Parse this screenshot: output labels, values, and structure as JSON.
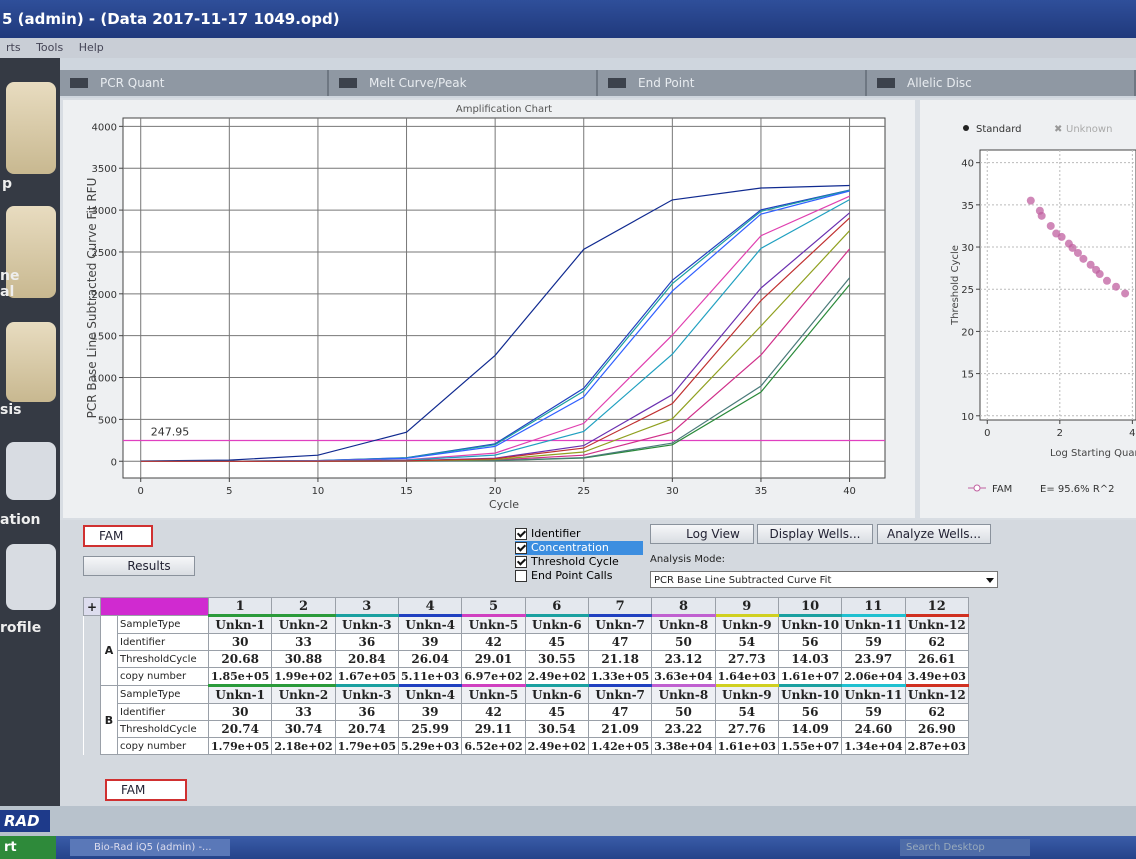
{
  "window": {
    "title": "5 (admin) - (Data 2017-11-17 1049.opd)",
    "menu": [
      "rts",
      "Tools",
      "Help"
    ]
  },
  "sidebar": [
    "p",
    "ne",
    "al",
    "sis",
    "ation",
    "rofile"
  ],
  "tabs": [
    "PCR Quant",
    "Melt Curve/Peak",
    "End Point",
    "Allelic Disc"
  ],
  "amplification_chart": {
    "type": "line",
    "title": "Amplification Chart",
    "x_label": "Cycle",
    "y_label": "PCR Base Line Subtracted Curve Fit RFU",
    "x": [
      0,
      5,
      10,
      15,
      20,
      25,
      30,
      35,
      40
    ],
    "series": [
      {
        "color": "#2040c0",
        "values": [
          0,
          1,
          8,
          42,
          209,
          871,
          2161,
          3003,
          3239
        ]
      },
      {
        "color": "#2a8a3a",
        "values": [
          0,
          0,
          1,
          4,
          7,
          39,
          197,
          827,
          2110
        ]
      },
      {
        "color": "#1aa0a0",
        "values": [
          0,
          1,
          8,
          40,
          198,
          837,
          2121,
          2986,
          3236
        ]
      },
      {
        "color": "#6a2fb0",
        "values": [
          0,
          0,
          1,
          7,
          37,
          187,
          795,
          2070,
          2968
        ]
      },
      {
        "color": "#d0308a",
        "values": [
          0,
          0,
          1,
          3,
          14,
          72,
          347,
          1269,
          2537
        ]
      },
      {
        "color": "#4a7a7a",
        "values": [
          0,
          0,
          1,
          2,
          8,
          44,
          217,
          899,
          2193
        ]
      },
      {
        "color": "#3060ff",
        "values": [
          0,
          1,
          7,
          35,
          178,
          767,
          2033,
          2952,
          3228
        ]
      },
      {
        "color": "#e040b0",
        "values": [
          0,
          1,
          4,
          19,
          97,
          452,
          1507,
          2694,
          3166
        ]
      },
      {
        "color": "#90a020",
        "values": [
          0,
          0,
          1,
          4,
          21,
          110,
          507,
          1616,
          2754
        ]
      },
      {
        "color": "#102a90",
        "values": [
          3,
          14,
          72,
          347,
          1264,
          2531,
          3122,
          3264,
          3294
        ]
      },
      {
        "color": "#20a0c0",
        "values": [
          0,
          1,
          3,
          14,
          73,
          355,
          1279,
          2542,
          3125
        ]
      },
      {
        "color": "#c03030",
        "values": [
          0,
          0,
          1,
          6,
          31,
          157,
          688,
          1920,
          2907
        ]
      }
    ],
    "xlim": [
      -1,
      42
    ],
    "ylim": [
      -200,
      4100
    ],
    "xticks": [
      0,
      5,
      10,
      15,
      20,
      25,
      30,
      35,
      40
    ],
    "yticks": [
      0,
      500,
      1000,
      1500,
      2000,
      2500,
      3000,
      3500,
      4000
    ],
    "grid": true,
    "threshold": 247.95,
    "threshold_color": "#e040c0"
  },
  "standard_curve": {
    "type": "scatter",
    "legend": [
      "Standard",
      "Unknown"
    ],
    "y_label": "Threshold Cycle",
    "x_label": "Log Starting Quant",
    "series_label": "FAM",
    "stats": "E= 95.6% R^2",
    "color": "#c060a0",
    "x": [
      1.2,
      1.45,
      1.5,
      1.75,
      1.9,
      2.05,
      2.25,
      2.35,
      2.5,
      2.65,
      2.85,
      3.0,
      3.1,
      3.3,
      3.55,
      3.8
    ],
    "y": [
      35.5,
      34.3,
      33.7,
      32.5,
      31.6,
      31.2,
      30.4,
      29.9,
      29.3,
      28.6,
      27.9,
      27.3,
      26.8,
      26.0,
      25.3,
      24.5
    ],
    "xlim": [
      -0.2,
      4.1
    ],
    "ylim": [
      9.5,
      41.5
    ],
    "xticks": [
      0,
      2,
      4
    ],
    "yticks": [
      10,
      15,
      20,
      25,
      30,
      35,
      40
    ],
    "grid": true
  },
  "controls": {
    "dye": "FAM",
    "results": "Results",
    "checkboxes": [
      {
        "label": "Identifier",
        "checked": true
      },
      {
        "label": "Concentration",
        "checked": true
      },
      {
        "label": "Threshold Cycle",
        "checked": true
      },
      {
        "label": "End Point Calls",
        "checked": false
      }
    ],
    "log_view": "Log View",
    "display_wells": "Display Wells...",
    "analyze_wells": "Analyze Wells...",
    "analysis_mode_label": "Analysis Mode:",
    "analysis_mode": "PCR Base Line Subtracted Curve Fit"
  },
  "table": {
    "columns": [
      1,
      2,
      3,
      4,
      5,
      6,
      7,
      8,
      9,
      10,
      11,
      12
    ],
    "column_colors": [
      "#2a9a3a",
      "#2a9a3a",
      "#1aa0a0",
      "#2040c0",
      "#d040c0",
      "#1aa0a0",
      "#2040c0",
      "#c060d0",
      "#d0d020",
      "#1aa0a0",
      "#20c0d0",
      "#d03020"
    ],
    "row_labels": [
      "SampleType",
      "Identifier",
      "ThresholdCycle",
      "copy number"
    ],
    "groups": [
      {
        "row": "A",
        "rows": [
          [
            "Unkn-1",
            "Unkn-2",
            "Unkn-3",
            "Unkn-4",
            "Unkn-5",
            "Unkn-6",
            "Unkn-7",
            "Unkn-8",
            "Unkn-9",
            "Unkn-10",
            "Unkn-11",
            "Unkn-12"
          ],
          [
            "30",
            "33",
            "36",
            "39",
            "42",
            "45",
            "47",
            "50",
            "54",
            "56",
            "59",
            "62"
          ],
          [
            "20.68",
            "30.88",
            "20.84",
            "26.04",
            "29.01",
            "30.55",
            "21.18",
            "23.12",
            "27.73",
            "14.03",
            "23.97",
            "26.61"
          ],
          [
            "1.85e+05",
            "1.99e+02",
            "1.67e+05",
            "5.11e+03",
            "6.97e+02",
            "2.49e+02",
            "1.33e+05",
            "3.63e+04",
            "1.64e+03",
            "1.61e+07",
            "2.06e+04",
            "3.49e+03"
          ]
        ]
      },
      {
        "row": "B",
        "rows": [
          [
            "Unkn-1",
            "Unkn-2",
            "Unkn-3",
            "Unkn-4",
            "Unkn-5",
            "Unkn-6",
            "Unkn-7",
            "Unkn-8",
            "Unkn-9",
            "Unkn-10",
            "Unkn-11",
            "Unkn-12"
          ],
          [
            "30",
            "33",
            "36",
            "39",
            "42",
            "45",
            "47",
            "50",
            "54",
            "56",
            "59",
            "62"
          ],
          [
            "20.74",
            "30.74",
            "20.74",
            "25.99",
            "29.11",
            "30.54",
            "21.09",
            "23.22",
            "27.76",
            "14.09",
            "24.60",
            "26.90"
          ],
          [
            "1.79e+05",
            "2.18e+02",
            "1.79e+05",
            "5.29e+03",
            "6.52e+02",
            "2.49e+02",
            "1.42e+05",
            "3.38e+04",
            "1.61e+03",
            "1.55e+07",
            "1.34e+04",
            "2.87e+03"
          ]
        ]
      }
    ],
    "footer": "FAM"
  },
  "footer": {
    "logo": "RAD",
    "start": "rt",
    "taskbar_item": "Bio-Rad iQ5 (admin) -...",
    "search": "Search Desktop"
  }
}
